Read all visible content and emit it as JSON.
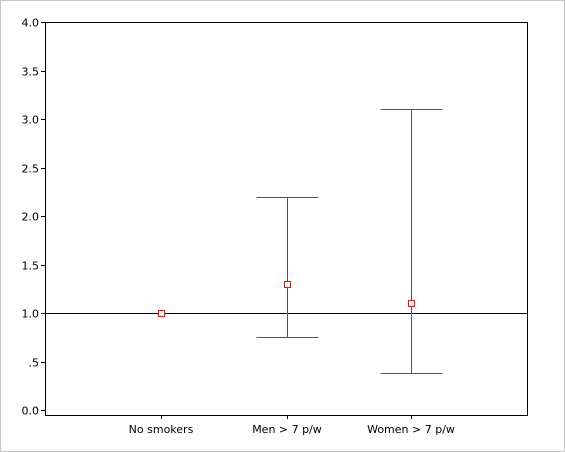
{
  "chart_data": {
    "type": "scatter",
    "categories": [
      "No smokers",
      "Men > 7 p/w",
      "Women > 7 p/w"
    ],
    "series": [
      {
        "values": [
          1.0,
          1.3,
          1.1
        ],
        "lower": [
          null,
          0.75,
          0.38
        ],
        "upper": [
          null,
          2.2,
          3.1
        ]
      }
    ],
    "reference_line": 1.0,
    "ylim": [
      0,
      4
    ],
    "yticks": [
      0,
      0.5,
      1.0,
      1.5,
      2.0,
      2.5,
      3.0,
      3.5,
      4.0
    ],
    "ytick_labels": [
      "0.0",
      ".5",
      "1.0",
      "1.5",
      "2.0",
      "2.5",
      "3.0",
      "3.5",
      "4.0"
    ],
    "title": "",
    "xlabel": "",
    "ylabel": "",
    "grid": false,
    "colors": {
      "series": "#cc2222",
      "axis": "#000000"
    }
  }
}
